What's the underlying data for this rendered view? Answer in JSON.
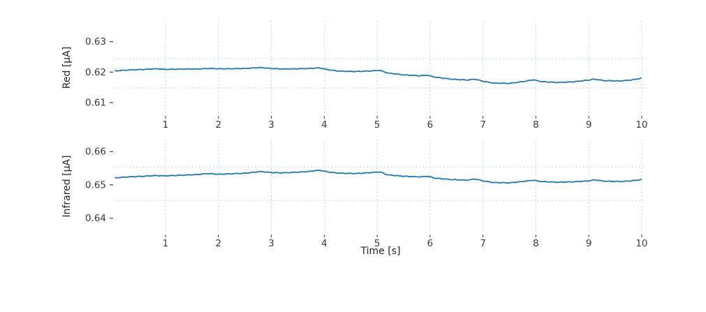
{
  "figure": {
    "xlabel": "Time [s]",
    "background": "#ffffff",
    "line_color": "#1f77b4",
    "grid_color": "#b8d7f2",
    "tick_color": "#3a3a3a",
    "tick_font_size": 13.5
  },
  "chart_data": [
    {
      "type": "line",
      "name": "red-channel",
      "ylabel": "Red [μA]",
      "xlim": [
        0.05,
        10.08
      ],
      "ylim": [
        0.6061,
        0.6368
      ],
      "xticks": [
        1,
        2,
        3,
        4,
        5,
        6,
        7,
        8,
        9,
        10
      ],
      "xtick_labels": [
        "1",
        "2",
        "3",
        "4",
        "5",
        "6",
        "7",
        "8",
        "9",
        "10"
      ],
      "yticks": [
        0.61,
        0.62,
        0.63
      ],
      "ytick_labels": [
        "0.61",
        "0.62",
        "0.63"
      ],
      "grid_y": [
        0.6244,
        0.6148
      ],
      "x": [
        0.05,
        0.3,
        0.6,
        0.8,
        1.0,
        1.3,
        1.6,
        1.8,
        2.0,
        2.2,
        2.5,
        2.8,
        3.0,
        3.2,
        3.5,
        3.7,
        3.9,
        4.1,
        4.3,
        4.6,
        4.9,
        5.05,
        5.2,
        5.5,
        5.8,
        5.95,
        6.1,
        6.4,
        6.7,
        6.85,
        7.0,
        7.2,
        7.5,
        7.8,
        7.95,
        8.1,
        8.4,
        8.7,
        9.0,
        9.1,
        9.3,
        9.6,
        9.8,
        10.0
      ],
      "y": [
        0.6204,
        0.6207,
        0.6209,
        0.6211,
        0.6209,
        0.621,
        0.621,
        0.6212,
        0.6211,
        0.6211,
        0.6212,
        0.6215,
        0.6212,
        0.621,
        0.6211,
        0.6212,
        0.6214,
        0.6207,
        0.6203,
        0.6202,
        0.6204,
        0.6206,
        0.6197,
        0.6191,
        0.6188,
        0.619,
        0.6183,
        0.6177,
        0.6174,
        0.6177,
        0.617,
        0.6164,
        0.6163,
        0.617,
        0.6175,
        0.6169,
        0.6166,
        0.6168,
        0.6174,
        0.6177,
        0.6172,
        0.6171,
        0.6174,
        0.618
      ]
    },
    {
      "type": "line",
      "name": "infrared-channel",
      "ylabel": "Infrared [μA]",
      "xlim": [
        0.05,
        10.08
      ],
      "ylim": [
        0.6355,
        0.6636
      ],
      "xticks": [
        1,
        2,
        3,
        4,
        5,
        6,
        7,
        8,
        9,
        10
      ],
      "xtick_labels": [
        "1",
        "2",
        "3",
        "4",
        "5",
        "6",
        "7",
        "8",
        "9",
        "10"
      ],
      "yticks": [
        0.64,
        0.65,
        0.66
      ],
      "ytick_labels": [
        "0.64",
        "0.65",
        "0.66"
      ],
      "grid_y": [
        0.6554,
        0.6452
      ],
      "x": [
        0.05,
        0.3,
        0.6,
        0.8,
        1.0,
        1.3,
        1.6,
        1.8,
        2.0,
        2.2,
        2.5,
        2.8,
        3.0,
        3.2,
        3.5,
        3.7,
        3.9,
        4.1,
        4.3,
        4.6,
        4.9,
        5.05,
        5.2,
        5.5,
        5.8,
        5.95,
        6.1,
        6.4,
        6.7,
        6.85,
        7.0,
        7.2,
        7.5,
        7.8,
        7.95,
        8.1,
        8.4,
        8.7,
        9.0,
        9.1,
        9.3,
        9.6,
        9.8,
        10.0
      ],
      "y": [
        0.6521,
        0.6524,
        0.6526,
        0.6528,
        0.6527,
        0.6529,
        0.6531,
        0.6534,
        0.6532,
        0.6533,
        0.6535,
        0.654,
        0.6537,
        0.6536,
        0.6538,
        0.654,
        0.6544,
        0.6538,
        0.6535,
        0.6534,
        0.6537,
        0.6539,
        0.653,
        0.6526,
        0.6524,
        0.6526,
        0.652,
        0.6516,
        0.6514,
        0.6518,
        0.6512,
        0.6507,
        0.6506,
        0.6511,
        0.6514,
        0.651,
        0.6508,
        0.6509,
        0.6512,
        0.6515,
        0.6511,
        0.651,
        0.6512,
        0.6516
      ]
    }
  ]
}
